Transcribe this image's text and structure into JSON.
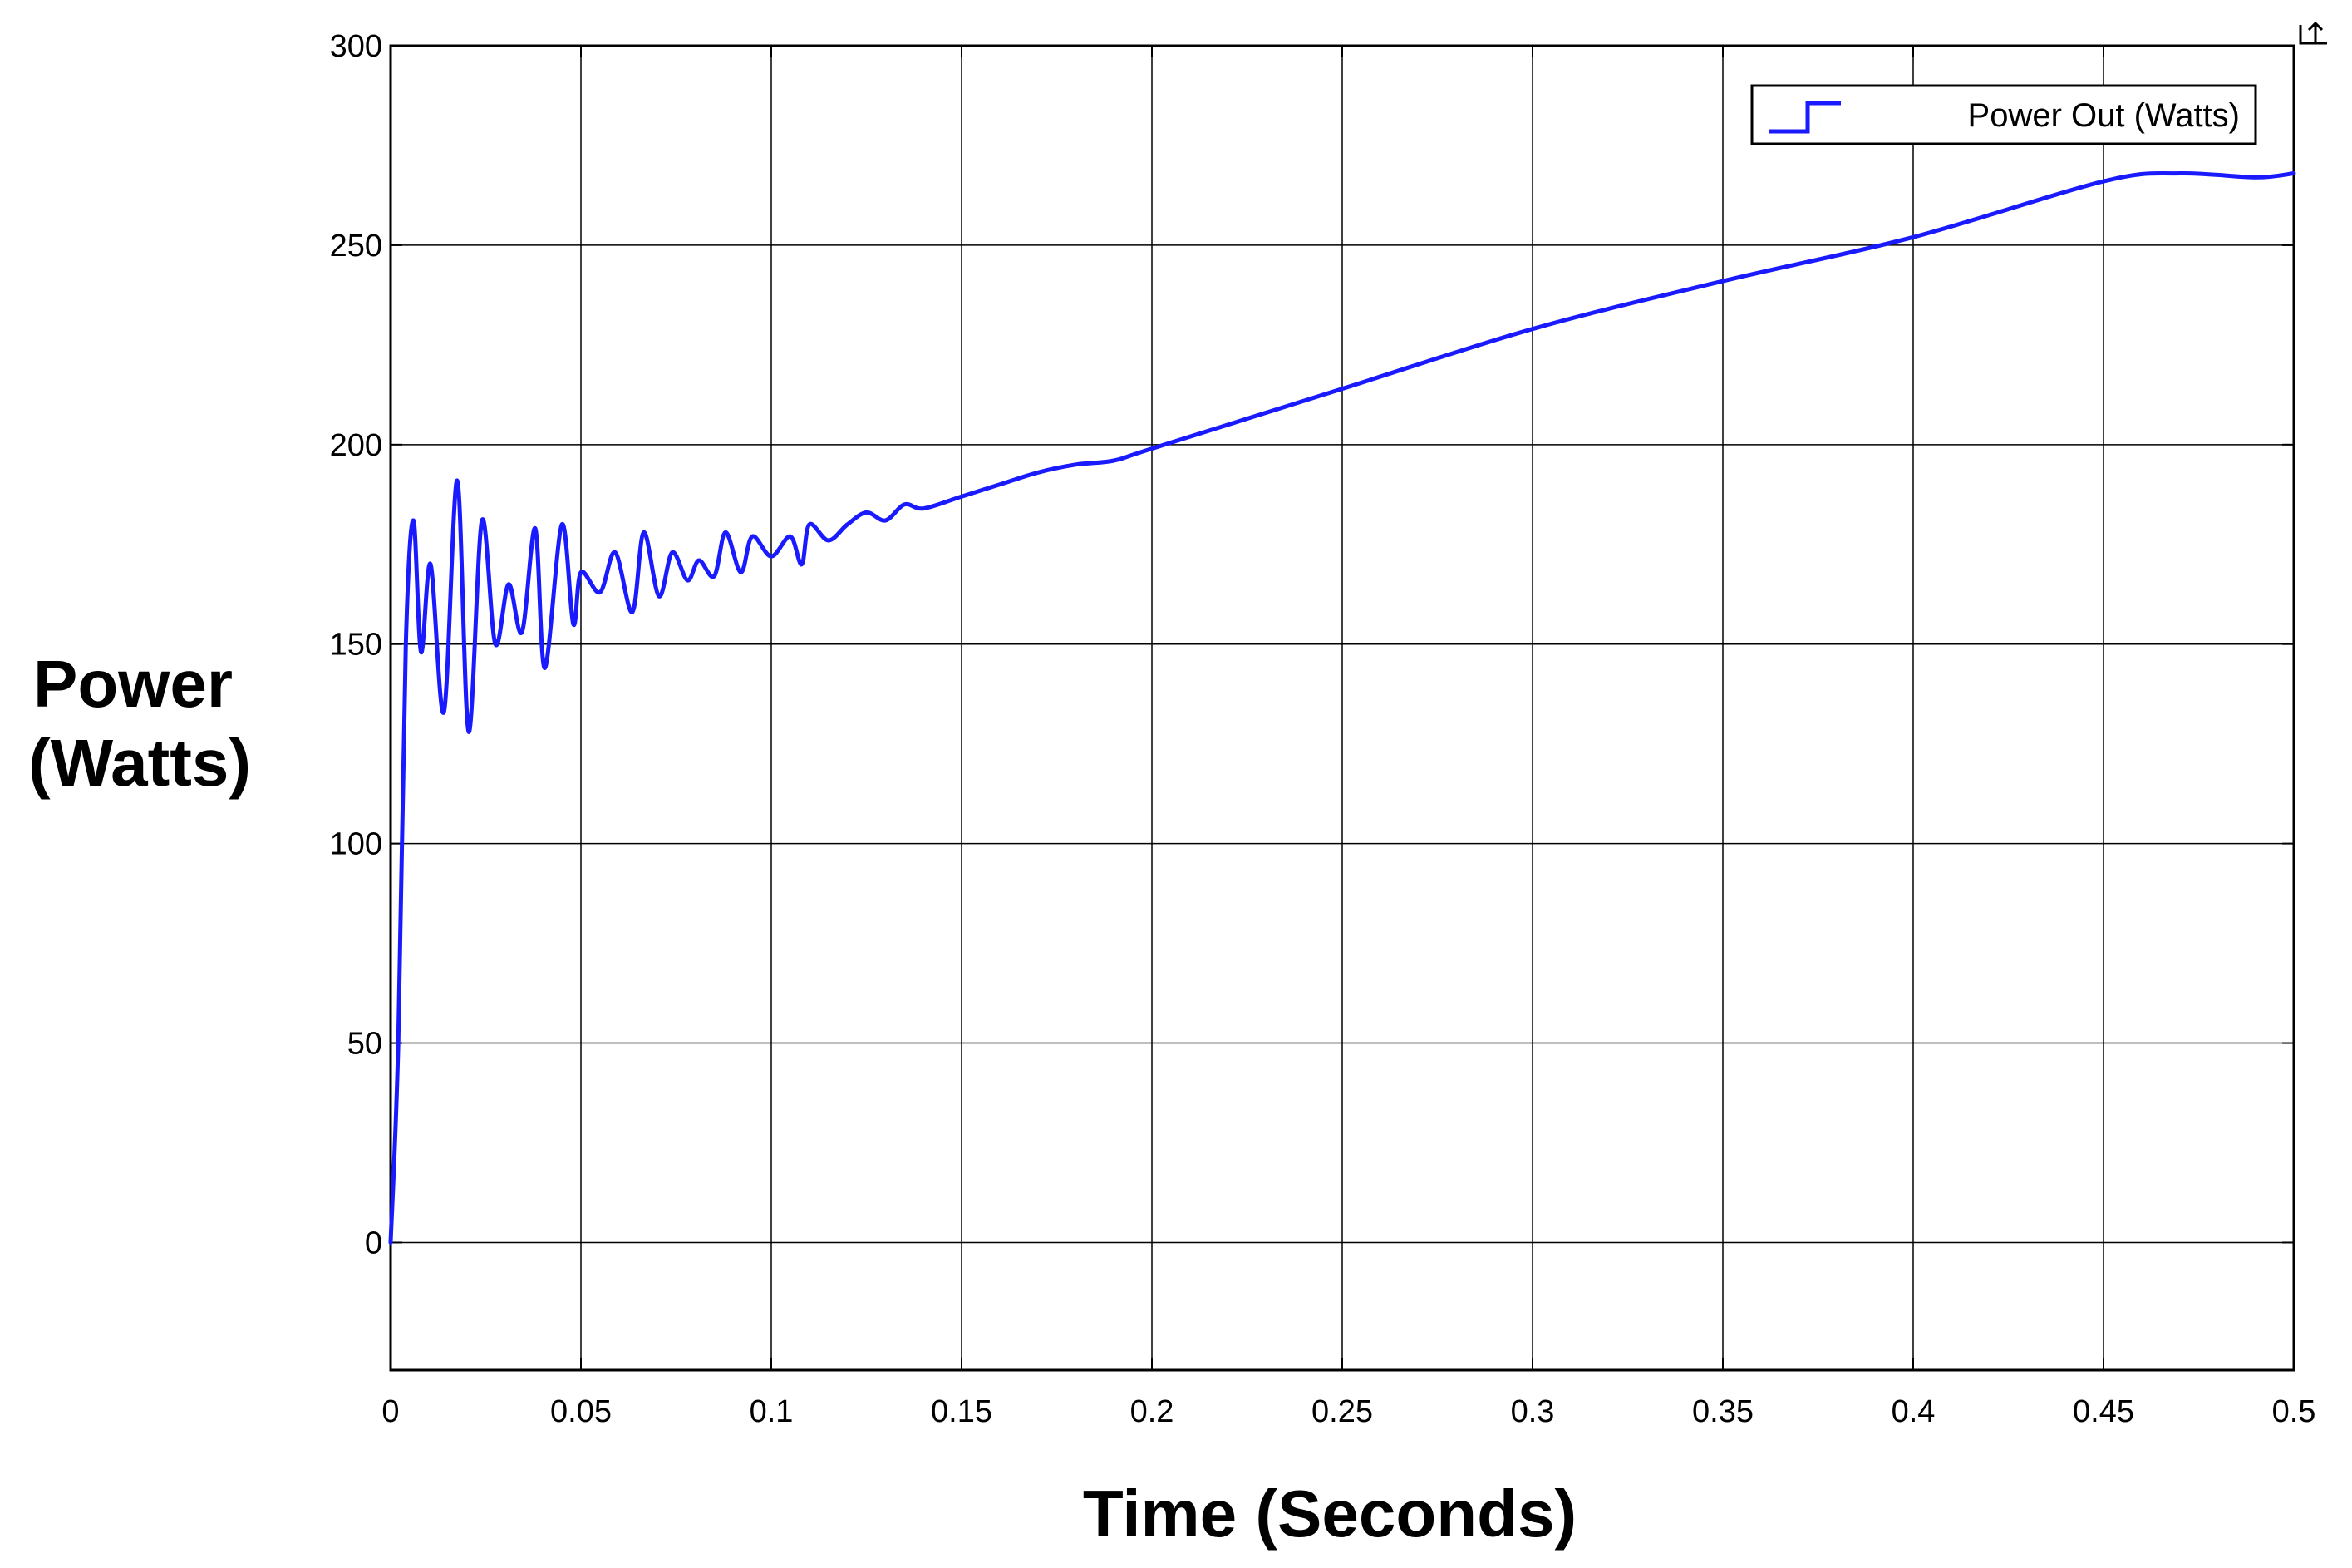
{
  "chart_data": {
    "type": "line",
    "title": "",
    "xlabel": "Time (Seconds)",
    "ylabel_lines": [
      "Power",
      "(Watts)"
    ],
    "xlim": [
      0,
      0.5
    ],
    "ylim": [
      -32,
      300
    ],
    "xticks": [
      0,
      0.05,
      0.1,
      0.15,
      0.2,
      0.25,
      0.3,
      0.35,
      0.4,
      0.45,
      0.5
    ],
    "xtick_labels": [
      "0",
      "0.05",
      "0.1",
      "0.15",
      "0.2",
      "0.25",
      "0.3",
      "0.35",
      "0.4",
      "0.45",
      "0.5"
    ],
    "yticks": [
      0,
      50,
      100,
      150,
      200,
      250,
      300
    ],
    "ytick_labels": [
      "0",
      "50",
      "100",
      "150",
      "200",
      "250",
      "300"
    ],
    "grid": true,
    "legend_position": "top-right",
    "colors": {
      "series": "#1a1aff",
      "axes": "#000000",
      "grid": "#000000"
    },
    "series": [
      {
        "name": "Power Out (Watts)",
        "x": [
          0,
          0.002,
          0.004,
          0.006,
          0.008,
          0.0105,
          0.014,
          0.0175,
          0.0205,
          0.024,
          0.0275,
          0.031,
          0.0345,
          0.038,
          0.0405,
          0.045,
          0.048,
          0.05,
          0.055,
          0.059,
          0.0635,
          0.0665,
          0.0705,
          0.074,
          0.078,
          0.081,
          0.085,
          0.088,
          0.092,
          0.095,
          0.1,
          0.105,
          0.108,
          0.11,
          0.115,
          0.12,
          0.125,
          0.13,
          0.135,
          0.14,
          0.15,
          0.16,
          0.17,
          0.18,
          0.19,
          0.2,
          0.25,
          0.3,
          0.35,
          0.4,
          0.45,
          0.47,
          0.49,
          0.5
        ],
        "y": [
          0,
          50,
          150,
          181,
          148,
          170,
          133,
          191,
          128,
          181,
          150,
          165,
          153,
          179,
          144,
          180,
          155,
          168,
          163,
          173,
          158,
          178,
          162,
          173,
          166,
          171,
          167,
          178,
          168,
          177,
          172,
          177,
          170,
          180,
          176,
          180,
          183,
          181,
          185,
          184,
          187,
          190,
          193,
          195,
          196,
          199,
          214,
          229,
          241,
          252,
          266,
          268,
          267,
          268
        ]
      }
    ]
  }
}
